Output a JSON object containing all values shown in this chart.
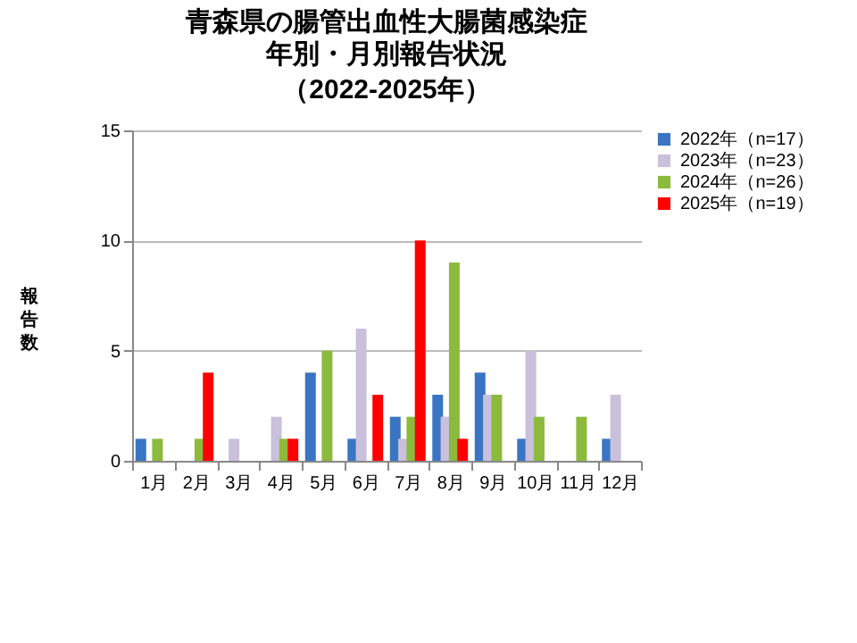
{
  "chart_data": {
    "type": "bar",
    "title": "青森県の腸管出血性大腸菌感染症",
    "subtitle": "年別・月別報告状況（2022-2025年）",
    "ylabel": "報告数",
    "categories": [
      "1月",
      "2月",
      "3月",
      "4月",
      "5月",
      "6月",
      "7月",
      "8月",
      "9月",
      "10月",
      "11月",
      "12月"
    ],
    "series": [
      {
        "name": "2022年（n=17）",
        "color": "#3a75c4",
        "values": [
          1,
          0,
          0,
          0,
          4,
          1,
          2,
          3,
          4,
          1,
          0,
          1
        ]
      },
      {
        "name": "2023年（n=23）",
        "color": "#c9c0dc",
        "values": [
          0,
          0,
          1,
          2,
          0,
          6,
          1,
          2,
          3,
          5,
          0,
          3
        ]
      },
      {
        "name": "2024年（n=26）",
        "color": "#8cba3c",
        "values": [
          1,
          1,
          0,
          1,
          5,
          0,
          2,
          9,
          3,
          2,
          2,
          0
        ]
      },
      {
        "name": "2025年（n=19）",
        "color": "#ff0000",
        "values": [
          0,
          4,
          0,
          1,
          0,
          3,
          10,
          1,
          0,
          0,
          0,
          0
        ]
      }
    ],
    "ylim": [
      0,
      15
    ],
    "yticks": [
      0,
      5,
      10,
      15
    ],
    "grid": "y",
    "legend": "right"
  }
}
